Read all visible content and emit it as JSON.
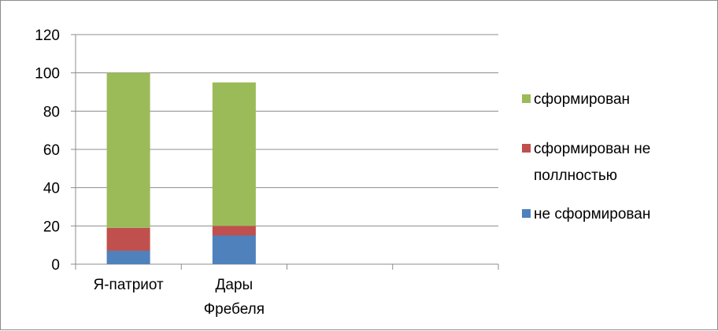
{
  "chart_data": {
    "type": "bar",
    "stacked": true,
    "categories": [
      [
        "Я-патриот"
      ],
      [
        "Дары",
        "Фребеля"
      ],
      [
        ""
      ],
      [
        ""
      ]
    ],
    "series": [
      {
        "name": "не сформирован",
        "color": "#4f81bd",
        "values": [
          7,
          15,
          null,
          null
        ]
      },
      {
        "name": "сформирован не полностью",
        "color": "#c0504d",
        "values": [
          12,
          5,
          null,
          null
        ]
      },
      {
        "name": "сформирован",
        "color": "#9bbb59",
        "values": [
          81,
          75,
          null,
          null
        ]
      }
    ],
    "legend": {
      "position": "right",
      "order": [
        "сформирован",
        "сформирован не полностью",
        "не сформирован"
      ],
      "entries": [
        {
          "lines": [
            "сформирован"
          ],
          "color": "#9bbb59"
        },
        {
          "lines": [
            "сформирован не",
            "поллностью"
          ],
          "color": "#c0504d"
        },
        {
          "lines": [
            "не сформирован"
          ],
          "color": "#4f81bd"
        }
      ]
    },
    "yticks": [
      "0",
      "20",
      "40",
      "60",
      "80",
      "100",
      "120"
    ],
    "ylim": [
      0,
      120
    ],
    "grid": true,
    "title": "",
    "xlabel": "",
    "ylabel": ""
  }
}
